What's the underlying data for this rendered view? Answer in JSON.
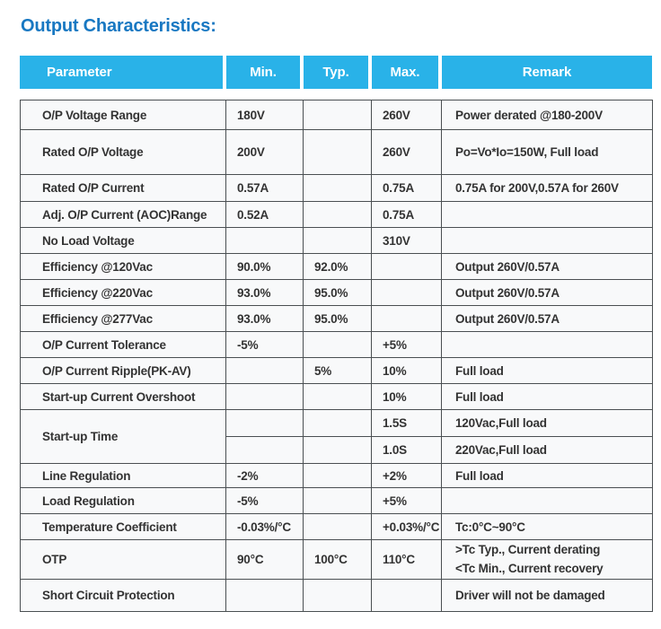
{
  "title": "Output Characteristics:",
  "colors": {
    "header_bg": "#29b2e8",
    "title": "#1878c2",
    "border": "#4a4f52",
    "cell_bg": "#f8f9fa",
    "body_text": "#333333",
    "header_text": "#ffffff"
  },
  "table": {
    "columns": [
      "Parameter",
      "Min.",
      "Typ.",
      "Max.",
      "Remark"
    ],
    "rows": [
      {
        "parameter": "O/P Voltage Range",
        "min": "180V",
        "typ": "",
        "max": "260V",
        "remark": "Power derated @180-200V"
      },
      {
        "parameter": "Rated O/P Voltage",
        "min": "200V",
        "typ": "",
        "max": "260V",
        "remark": "Po=Vo*Io=150W, Full load"
      },
      {
        "parameter": "Rated O/P Current",
        "min": "0.57A",
        "typ": "",
        "max": "0.75A",
        "remark": "0.75A for 200V,0.57A for 260V"
      },
      {
        "parameter": "Adj. O/P Current (AOC)Range",
        "min": "0.52A",
        "typ": "",
        "max": "0.75A",
        "remark": ""
      },
      {
        "parameter": "No Load Voltage",
        "min": "",
        "typ": "",
        "max": "310V",
        "remark": ""
      },
      {
        "parameter": "Efficiency @120Vac",
        "min": "90.0%",
        "typ": "92.0%",
        "max": "",
        "remark": "Output 260V/0.57A"
      },
      {
        "parameter": "Efficiency @220Vac",
        "min": "93.0%",
        "typ": "95.0%",
        "max": "",
        "remark": "Output 260V/0.57A"
      },
      {
        "parameter": "Efficiency @277Vac",
        "min": "93.0%",
        "typ": "95.0%",
        "max": "",
        "remark": "Output 260V/0.57A"
      },
      {
        "parameter": "O/P Current Tolerance",
        "min": "-5%",
        "typ": "",
        "max": "+5%",
        "remark": ""
      },
      {
        "parameter": "O/P Current Ripple(PK-AV)",
        "min": "",
        "typ": "5%",
        "max": "10%",
        "remark": "Full load"
      },
      {
        "parameter": "Start-up Current Overshoot",
        "min": "",
        "typ": "",
        "max": "10%",
        "remark": "Full load"
      },
      {
        "parameter": "Start-up Time",
        "subrows": [
          {
            "min": "",
            "typ": "",
            "max": "1.5S",
            "remark": "120Vac,Full load"
          },
          {
            "min": "",
            "typ": "",
            "max": "1.0S",
            "remark": "220Vac,Full load"
          }
        ]
      },
      {
        "parameter": "Line Regulation",
        "min": "-2%",
        "typ": "",
        "max": "+2%",
        "remark": "Full load"
      },
      {
        "parameter": "Load Regulation",
        "min": "-5%",
        "typ": "",
        "max": "+5%",
        "remark": ""
      },
      {
        "parameter": "Temperature Coefficient",
        "min": "-0.03%/°C",
        "typ": "",
        "max": "+0.03%/°C",
        "remark": "Tc:0°C~90°C"
      },
      {
        "parameter": "OTP",
        "min": "90°C",
        "typ": "100°C",
        "max": "110°C",
        "remark": [
          ">Tc Typ., Current derating",
          "<Tc Min., Current recovery"
        ]
      },
      {
        "parameter": "Short Circuit Protection",
        "min": "",
        "typ": "",
        "max": "",
        "remark": "Driver will not be damaged"
      }
    ]
  }
}
